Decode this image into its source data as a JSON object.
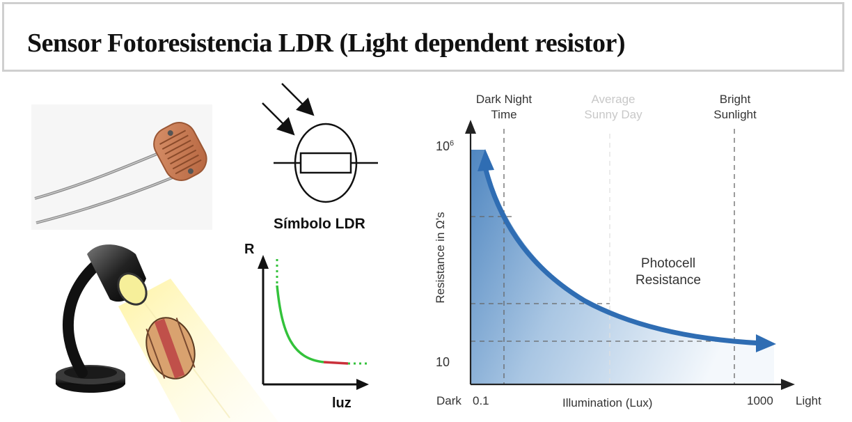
{
  "title": "Sensor Fotoresistencia LDR (Light dependent resistor)",
  "symbol": {
    "label": "Símbolo LDR"
  },
  "mini_graph": {
    "y_label": "R",
    "x_label": "luz"
  },
  "chart": {
    "markers": [
      {
        "line1": "Dark Night",
        "line2": "Time"
      },
      {
        "line1": "Average",
        "line2": "Sunny Day"
      },
      {
        "line1": "Bright",
        "line2": "Sunlight"
      }
    ],
    "y_axis_label": "Resistance in Ω's",
    "y_tick_top_base": "10",
    "y_tick_top_exp": "6",
    "y_tick_bottom": "10",
    "x_axis_label": "Illumination (Lux)",
    "x_left_word": "Dark",
    "x_tick_left": "0.1",
    "x_tick_right": "1000",
    "x_right_word": "Light",
    "curve_label_1": "Photocell",
    "curve_label_2": "Resistance",
    "colors": {
      "curve": "#2f6db3",
      "fill_dark": "#4f86c0"
    }
  }
}
